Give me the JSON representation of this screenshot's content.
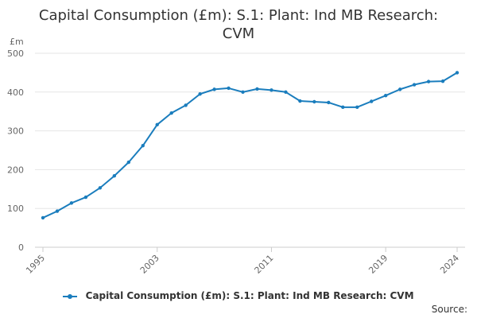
{
  "chart_data": {
    "type": "line",
    "title_lines": [
      "Capital Consumption (£m): S.1: Plant: Ind MB Research:",
      "CVM"
    ],
    "ylabel": "£m",
    "xlabel": "",
    "ylim": [
      0,
      500
    ],
    "yticks": [
      0,
      100,
      200,
      300,
      400,
      500
    ],
    "xlim": [
      1995,
      2024
    ],
    "xticks": [
      1995,
      2003,
      2011,
      2019,
      2024
    ],
    "grid": true,
    "legend_position": "bottom",
    "series": [
      {
        "name": "Capital Consumption (£m): S.1: Plant: Ind MB Research: CVM",
        "color": "#1a7dbd",
        "x": [
          1995,
          1996,
          1997,
          1998,
          1999,
          2000,
          2001,
          2002,
          2003,
          2004,
          2005,
          2006,
          2007,
          2008,
          2009,
          2010,
          2011,
          2012,
          2013,
          2014,
          2015,
          2016,
          2017,
          2018,
          2019,
          2020,
          2021,
          2022,
          2023,
          2024
        ],
        "values": [
          76,
          93,
          114,
          129,
          153,
          184,
          219,
          262,
          316,
          346,
          366,
          395,
          407,
          410,
          400,
          408,
          405,
          400,
          377,
          375,
          373,
          361,
          361,
          376,
          391,
          407,
          419,
          427,
          428,
          450
        ]
      }
    ]
  },
  "source_label": "Source:"
}
